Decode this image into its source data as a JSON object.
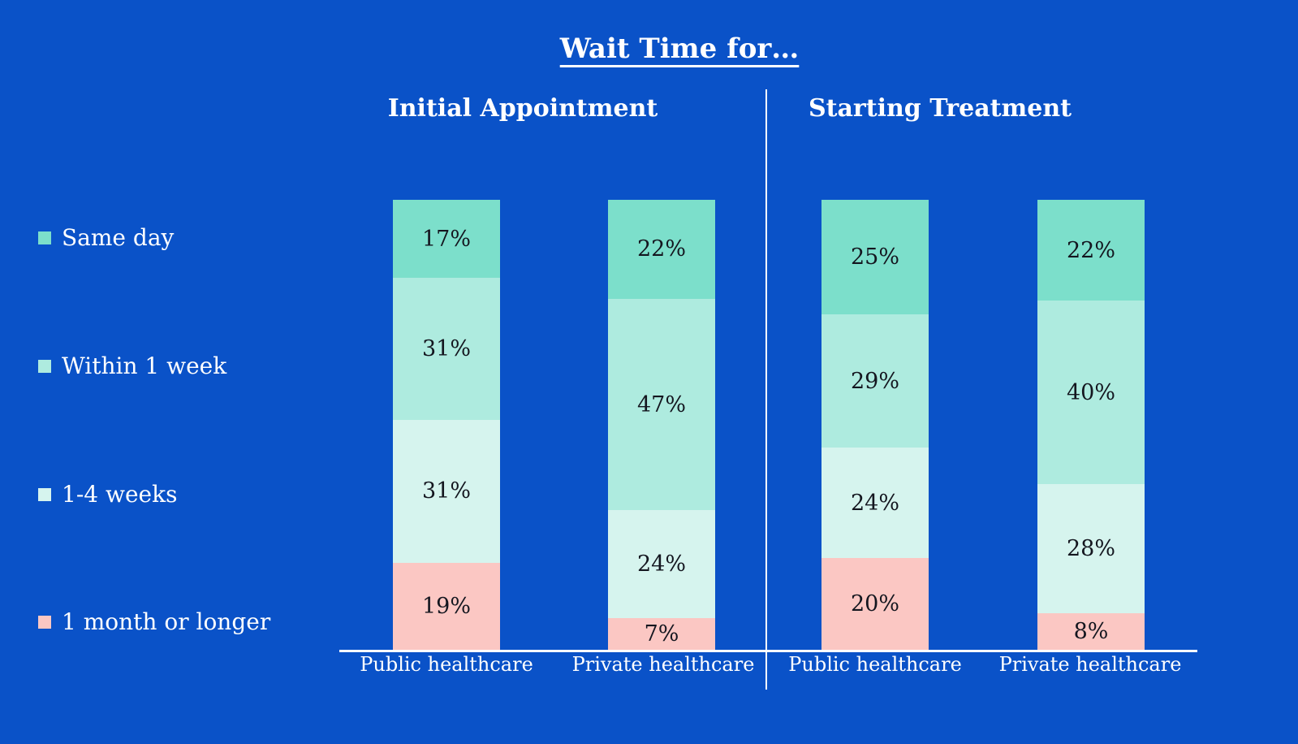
{
  "title": "Wait Time for…",
  "colors": {
    "background": "#0A52C8",
    "text_light": "#FFFFFF",
    "bar_label": "#14161F",
    "axis": "#FFFFFF"
  },
  "legend": [
    {
      "label": "Same day",
      "color": "#7CDFCB"
    },
    {
      "label": "Within 1 week",
      "color": "#AEEBDF"
    },
    {
      "label": "1-4 weeks",
      "color": "#D6F4EE"
    },
    {
      "label": "1 month or longer",
      "color": "#FBC7C3"
    }
  ],
  "chart_data": {
    "type": "bar",
    "stacked": true,
    "normalized_full_height": true,
    "title": "Wait Time for…",
    "value_suffix": "%",
    "series": [
      "Same day",
      "Within 1 week",
      "1-4 weeks",
      "1 month or longer"
    ],
    "series_colors": [
      "#7CDFCB",
      "#AEEBDF",
      "#D6F4EE",
      "#FBC7C3"
    ],
    "legend_position": "left",
    "panels": [
      {
        "label": "Initial Appointment",
        "bars": [
          {
            "category": "Public healthcare",
            "values": [
              17,
              31,
              31,
              19
            ]
          },
          {
            "category": "Private healthcare",
            "values": [
              22,
              47,
              24,
              7
            ]
          }
        ]
      },
      {
        "label": "Starting Treatment",
        "bars": [
          {
            "category": "Public healthcare",
            "values": [
              25,
              29,
              24,
              20
            ]
          },
          {
            "category": "Private healthcare",
            "values": [
              22,
              40,
              28,
              8
            ]
          }
        ]
      }
    ]
  }
}
